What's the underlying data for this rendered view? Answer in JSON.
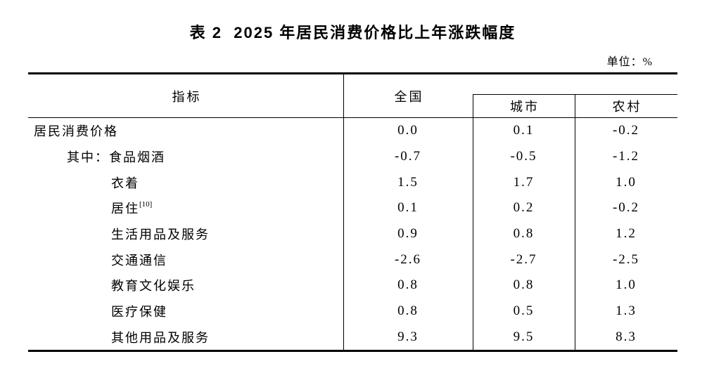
{
  "page": {
    "title": "表 2  2025 年居民消费价格比上年涨跌幅度",
    "unit_label": "单位：%"
  },
  "table": {
    "columns": {
      "indicator": "指标",
      "national": "全国",
      "urban": "城市",
      "rural": "农村"
    },
    "rows": [
      {
        "label": "居民消费价格",
        "national": "0.0",
        "urban": "0.1",
        "rural": "-0.2"
      },
      {
        "label": "其中：食品烟酒",
        "national": "-0.7",
        "urban": "-0.5",
        "rural": "-1.2"
      },
      {
        "label": "衣着",
        "national": "1.5",
        "urban": "1.7",
        "rural": "1.0"
      },
      {
        "label": "居住",
        "sup": "[10]",
        "national": "0.1",
        "urban": "0.2",
        "rural": "-0.2"
      },
      {
        "label": "生活用品及服务",
        "national": "0.9",
        "urban": "0.8",
        "rural": "1.2"
      },
      {
        "label": "交通通信",
        "national": "-2.6",
        "urban": "-2.7",
        "rural": "-2.5"
      },
      {
        "label": "教育文化娱乐",
        "national": "0.8",
        "urban": "0.8",
        "rural": "1.0"
      },
      {
        "label": "医疗保健",
        "national": "0.8",
        "urban": "0.5",
        "rural": "1.3"
      },
      {
        "label": "其他用品及服务",
        "national": "9.3",
        "urban": "9.5",
        "rural": "8.3"
      }
    ]
  }
}
